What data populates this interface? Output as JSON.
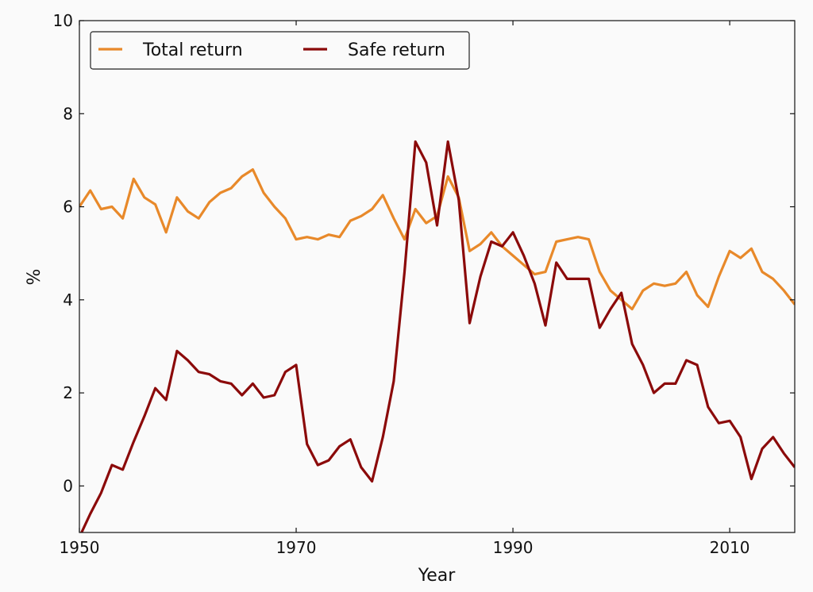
{
  "chart_data": {
    "type": "line",
    "xlabel": "Year",
    "ylabel": "%",
    "xlim": [
      1950,
      2016
    ],
    "ylim": [
      -1,
      10
    ],
    "xticks": [
      1950,
      1970,
      1990,
      2010
    ],
    "yticks": [
      0,
      2,
      4,
      6,
      8,
      10
    ],
    "legend_position": "top-left",
    "grid": false,
    "series": [
      {
        "name": "Total return",
        "color": "#e8892a",
        "x": [
          1950,
          1951,
          1952,
          1953,
          1954,
          1955,
          1956,
          1957,
          1958,
          1959,
          1960,
          1961,
          1962,
          1963,
          1964,
          1965,
          1966,
          1967,
          1968,
          1969,
          1970,
          1971,
          1972,
          1973,
          1974,
          1975,
          1976,
          1977,
          1978,
          1979,
          1980,
          1981,
          1982,
          1983,
          1984,
          1985,
          1986,
          1987,
          1988,
          1989,
          1990,
          1991,
          1992,
          1993,
          1994,
          1995,
          1996,
          1997,
          1998,
          1999,
          2000,
          2001,
          2002,
          2003,
          2004,
          2005,
          2006,
          2007,
          2008,
          2009,
          2010,
          2011,
          2012,
          2013,
          2014,
          2015,
          2016
        ],
        "values": [
          6.0,
          6.35,
          5.95,
          6.0,
          5.75,
          6.6,
          6.2,
          6.05,
          5.45,
          6.2,
          5.9,
          5.75,
          6.1,
          6.3,
          6.4,
          6.65,
          6.8,
          6.3,
          6.0,
          5.75,
          5.3,
          5.35,
          5.3,
          5.4,
          5.35,
          5.7,
          5.8,
          5.95,
          6.25,
          5.75,
          5.3,
          5.95,
          5.65,
          5.8,
          6.65,
          6.2,
          5.05,
          5.2,
          5.45,
          5.15,
          4.95,
          4.75,
          4.55,
          4.6,
          5.25,
          5.3,
          5.35,
          5.3,
          4.6,
          4.2,
          4.0,
          3.8,
          4.2,
          4.35,
          4.3,
          4.35,
          4.6,
          4.1,
          3.85,
          4.5,
          5.05,
          4.9,
          5.1,
          4.6,
          4.45,
          4.2,
          3.9
        ]
      },
      {
        "name": "Safe return",
        "color": "#8b0a0a",
        "x": [
          1950,
          1951,
          1952,
          1953,
          1954,
          1955,
          1956,
          1957,
          1958,
          1959,
          1960,
          1961,
          1962,
          1963,
          1964,
          1965,
          1966,
          1967,
          1968,
          1969,
          1970,
          1971,
          1972,
          1973,
          1974,
          1975,
          1976,
          1977,
          1978,
          1979,
          1980,
          1981,
          1982,
          1983,
          1984,
          1985,
          1986,
          1987,
          1988,
          1989,
          1990,
          1991,
          1992,
          1993,
          1994,
          1995,
          1996,
          1997,
          1998,
          1999,
          2000,
          2001,
          2002,
          2003,
          2004,
          2005,
          2006,
          2007,
          2008,
          2009,
          2010,
          2011,
          2012,
          2013,
          2014,
          2015,
          2016
        ],
        "values": [
          -1.1,
          -0.6,
          -0.15,
          0.45,
          0.35,
          0.95,
          1.5,
          2.1,
          1.85,
          2.9,
          2.7,
          2.45,
          2.4,
          2.25,
          2.2,
          1.95,
          2.2,
          1.9,
          1.95,
          2.45,
          2.6,
          0.9,
          0.45,
          0.55,
          0.85,
          1.0,
          0.4,
          0.1,
          1.05,
          2.25,
          4.6,
          7.4,
          6.95,
          5.6,
          7.4,
          6.15,
          3.5,
          4.5,
          5.25,
          5.15,
          5.45,
          4.95,
          4.35,
          3.45,
          4.8,
          4.45,
          4.45,
          4.45,
          3.4,
          3.8,
          4.15,
          3.05,
          2.6,
          2.0,
          2.2,
          2.2,
          2.7,
          2.6,
          1.7,
          1.35,
          1.4,
          1.05,
          0.15,
          0.8,
          1.05,
          0.7,
          0.4
        ]
      }
    ]
  }
}
